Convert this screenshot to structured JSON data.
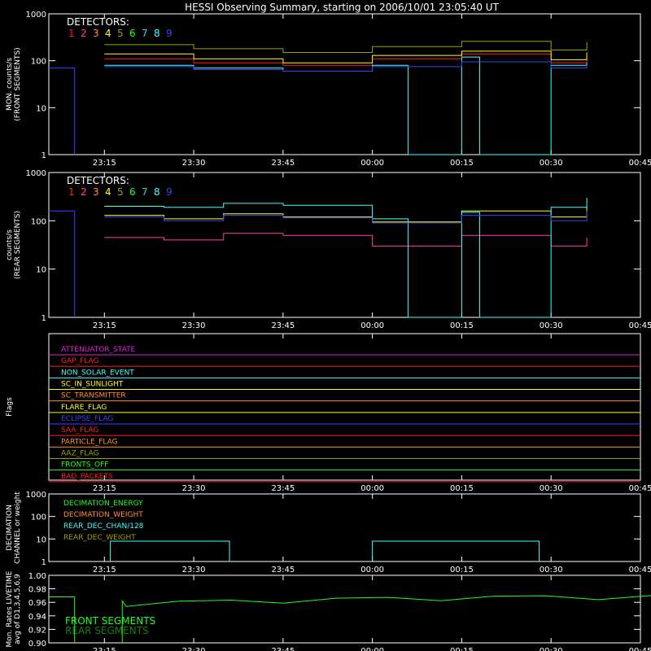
{
  "title": "HESSI Observing Summary, starting on 2006/10/01 23:05:40 UT",
  "x_ticks": [
    "23:15",
    "23:30",
    "23:45",
    "00:00",
    "00:15",
    "00:30",
    "00:45"
  ],
  "colors": {
    "det1": "#ff2020",
    "det2": "#ff40a0",
    "det3": "#ff9030",
    "det4": "#ffff20",
    "det5": "#a0a000",
    "det6": "#20ff20",
    "det7": "#20e0c0",
    "det8": "#40ffff",
    "det9": "#4040ff"
  },
  "chart_data": [
    {
      "type": "line",
      "panel": "front",
      "ylabel": "MON. counts/s\n(FRONT SEGMENTS)",
      "yscale": "log",
      "ylim": [
        1,
        1000
      ],
      "y_ticks": [
        "1",
        "10",
        "100",
        "1000"
      ],
      "legend_title": "DETECTORS:",
      "legend_items": [
        "1",
        "2",
        "3",
        "4",
        "5",
        "6",
        "7",
        "8",
        "9"
      ],
      "x_axis": "UT time",
      "data_gaps": [
        [
          "23:09",
          "23:15"
        ],
        [
          "00:37",
          "00:45"
        ]
      ],
      "series": [
        {
          "name": "1",
          "x": [
            "23:15",
            "23:30",
            "23:45",
            "00:00",
            "00:15",
            "00:30",
            "00:36"
          ],
          "values": [
            110,
            90,
            80,
            110,
            140,
            90,
            120
          ]
        },
        {
          "name": "4",
          "x": [
            "23:15",
            "23:30",
            "23:45",
            "00:00",
            "00:15",
            "00:30",
            "00:36"
          ],
          "values": [
            140,
            110,
            90,
            130,
            160,
            105,
            150
          ]
        },
        {
          "name": "5",
          "x": [
            "23:15",
            "23:30",
            "23:45",
            "00:00",
            "00:15",
            "00:30",
            "00:36"
          ],
          "values": [
            220,
            180,
            150,
            200,
            260,
            170,
            250
          ]
        },
        {
          "name": "8",
          "x": [
            "23:15",
            "23:30",
            "23:45",
            "00:00",
            "00:06",
            "00:08",
            "00:12",
            "00:15",
            "00:18",
            "00:20",
            "00:30",
            "00:36"
          ],
          "values": [
            80,
            70,
            60,
            80,
            1,
            1,
            1,
            120,
            1,
            1,
            80,
            90
          ]
        },
        {
          "name": "9",
          "x": [
            "23:15",
            "23:30",
            "23:45",
            "00:00",
            "00:15",
            "00:30",
            "00:36"
          ],
          "values": [
            75,
            65,
            60,
            75,
            95,
            70,
            80
          ]
        }
      ]
    },
    {
      "type": "line",
      "panel": "rear",
      "ylabel": "counts/s\n(REAR SEGMENTS)",
      "yscale": "log",
      "ylim": [
        1,
        1000
      ],
      "y_ticks": [
        "1",
        "10",
        "100",
        "1000"
      ],
      "legend_title": "DETECTORS:",
      "legend_items": [
        "1",
        "2",
        "3",
        "4",
        "5",
        "6",
        "7",
        "8",
        "9"
      ],
      "x_axis": "UT time",
      "data_gaps": [
        [
          "23:09",
          "23:15"
        ],
        [
          "00:37",
          "00:45"
        ]
      ],
      "series": [
        {
          "name": "2",
          "x": [
            "23:15",
            "23:25",
            "23:35",
            "23:45",
            "00:00",
            "00:15",
            "00:30",
            "00:36"
          ],
          "values": [
            45,
            40,
            55,
            50,
            30,
            50,
            30,
            45
          ]
        },
        {
          "name": "4",
          "x": [
            "23:15",
            "23:25",
            "23:35",
            "23:45",
            "00:00",
            "00:15",
            "00:30",
            "00:36"
          ],
          "values": [
            130,
            110,
            140,
            120,
            95,
            160,
            120,
            200
          ]
        },
        {
          "name": "8",
          "x": [
            "23:15",
            "23:25",
            "23:35",
            "23:45",
            "00:00",
            "00:06",
            "00:08",
            "00:12",
            "00:15",
            "00:18",
            "00:20",
            "00:30",
            "00:36"
          ],
          "values": [
            200,
            190,
            230,
            210,
            110,
            1,
            1,
            1,
            150,
            1,
            1,
            190,
            300
          ]
        },
        {
          "name": "9",
          "x": [
            "23:15",
            "23:25",
            "23:35",
            "23:45",
            "00:00",
            "00:15",
            "00:30",
            "00:36"
          ],
          "values": [
            120,
            100,
            130,
            115,
            90,
            130,
            100,
            160
          ]
        }
      ]
    },
    {
      "type": "flags",
      "panel": "flags",
      "ylabel": "Flags",
      "flags": [
        {
          "name": "ATTENUATOR_STATE",
          "color": "#e020e0"
        },
        {
          "name": "GAP_FLAG",
          "color": "#ff2020"
        },
        {
          "name": "NON_SOLAR_EVENT",
          "color": "#40ffff"
        },
        {
          "name": "SC_IN_SUNLIGHT",
          "color": "#ffff20"
        },
        {
          "name": "SC_TRANSMITTER",
          "color": "#ff9030"
        },
        {
          "name": "FLARE_FLAG",
          "color": "#ffff20"
        },
        {
          "name": "ECLIPSE_FLAG",
          "color": "#4040ff"
        },
        {
          "name": "SAA_FLAG",
          "color": "#ff2020"
        },
        {
          "name": "PARTICLE_FLAG",
          "color": "#ff9030"
        },
        {
          "name": "AAZ_FLAG",
          "color": "#a0a000"
        },
        {
          "name": "FRONTS_OFF",
          "color": "#20ff20"
        },
        {
          "name": "BAD_PACKETS",
          "color": "#ff2020"
        }
      ]
    },
    {
      "type": "line",
      "panel": "decimation",
      "ylabel": "DECIMATION\nCHANNEL or weight",
      "yscale": "log",
      "ylim": [
        1,
        1000
      ],
      "y_ticks": [
        "1",
        "10",
        "100",
        "1000"
      ],
      "legend_items": [
        {
          "name": "DECIMATION_ENERGY",
          "color": "#20ff20"
        },
        {
          "name": "DECIMATION_WEIGHT",
          "color": "#ff9030"
        },
        {
          "name": "REAR_DEC_CHAN/128",
          "color": "#40ffff"
        },
        {
          "name": "REAR_DEC_WEIGHT",
          "color": "#a0a000"
        }
      ]
    },
    {
      "type": "line",
      "panel": "livetime",
      "ylabel": "Mon. Rates LIVETIME\navg of D1,3,4,5,6,9",
      "ylim": [
        0.9,
        1.0
      ],
      "y_ticks": [
        "0.90",
        "0.92",
        "0.94",
        "0.96",
        "0.98",
        "1.00"
      ],
      "legend_items": [
        {
          "name": "FRONT SEGMENTS",
          "color": "#20ff20"
        },
        {
          "name": "REAR SEGMENTS",
          "color": "#108010"
        }
      ]
    }
  ]
}
